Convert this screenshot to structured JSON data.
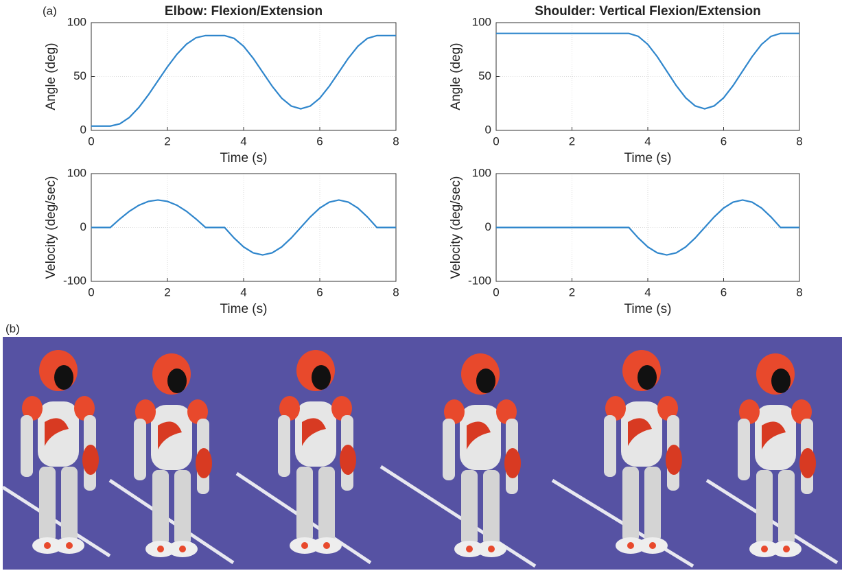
{
  "panel_labels": [
    "(a)",
    "(b)"
  ],
  "chart_data": [
    {
      "type": "line",
      "title": "Elbow: Flexion/Extension",
      "xlabel": "Time (s)",
      "ylabel": "Angle (deg)",
      "x": [
        0,
        0.25,
        0.5,
        0.75,
        1,
        1.25,
        1.5,
        1.75,
        2,
        2.25,
        2.5,
        2.75,
        3,
        3.25,
        3.5,
        3.75,
        4,
        4.25,
        4.5,
        4.75,
        5,
        5.25,
        5.5,
        5.75,
        6,
        6.25,
        6.5,
        6.75,
        7,
        7.25,
        7.5,
        7.75,
        8
      ],
      "series": [
        {
          "color": "#2f86cc",
          "values": [
            4,
            4,
            4,
            6.1,
            12,
            21.3,
            33,
            46,
            59,
            70.7,
            80,
            86,
            88,
            88,
            88,
            85.4,
            78.1,
            67,
            54,
            41,
            29.9,
            22.6,
            20,
            22.6,
            29.9,
            41,
            54,
            67,
            78.1,
            85.4,
            88,
            88,
            88
          ]
        }
      ],
      "xlim": [
        0,
        8
      ],
      "ylim": [
        0,
        100
      ],
      "xticks": [
        0,
        2,
        4,
        6,
        8
      ],
      "yticks": [
        0,
        50,
        100
      ],
      "grid": true
    },
    {
      "type": "line",
      "xlabel": "Time (s)",
      "ylabel": "Velocity (deg/sec)",
      "x": [
        0,
        0.25,
        0.5,
        0.75,
        1,
        1.25,
        1.5,
        1.75,
        2,
        2.25,
        2.5,
        2.75,
        3,
        3.25,
        3.5,
        3.75,
        4,
        4.25,
        4.5,
        4.75,
        5,
        5.25,
        5.5,
        5.75,
        6,
        6.25,
        6.5,
        6.75,
        7,
        7.25,
        7.5,
        7.75,
        8
      ],
      "series": [
        {
          "color": "#2f86cc",
          "values": [
            0,
            0,
            0,
            15.8,
            30,
            41.3,
            48.5,
            51,
            48.5,
            41.3,
            30,
            15.8,
            0,
            0,
            0,
            -19.5,
            -36.1,
            -47.1,
            -51,
            -47.1,
            -36.1,
            -19.5,
            0,
            19.5,
            36.1,
            47.1,
            51,
            47.1,
            36.1,
            19.5,
            0,
            0,
            0
          ]
        }
      ],
      "xlim": [
        0,
        8
      ],
      "ylim": [
        -100,
        100
      ],
      "xticks": [
        0,
        2,
        4,
        6,
        8
      ],
      "yticks": [
        -100,
        0,
        100
      ],
      "grid": true
    },
    {
      "type": "line",
      "title": "Shoulder: Vertical Flexion/Extension",
      "xlabel": "Time (s)",
      "ylabel": "Angle (deg)",
      "x": [
        0,
        0.25,
        0.5,
        0.75,
        1,
        1.25,
        1.5,
        1.75,
        2,
        2.25,
        2.5,
        2.75,
        3,
        3.25,
        3.5,
        3.75,
        4,
        4.25,
        4.5,
        4.75,
        5,
        5.25,
        5.5,
        5.75,
        6,
        6.25,
        6.5,
        6.75,
        7,
        7.25,
        7.5,
        7.75,
        8
      ],
      "series": [
        {
          "color": "#2f86cc",
          "values": [
            90,
            90,
            90,
            90,
            90,
            90,
            90,
            90,
            90,
            90,
            90,
            90,
            90,
            90,
            90,
            87.3,
            79.8,
            68.4,
            55,
            41.6,
            30.2,
            22.7,
            20,
            22.7,
            30.2,
            41.6,
            55,
            68.4,
            79.8,
            87.3,
            90,
            90,
            90
          ]
        }
      ],
      "xlim": [
        0,
        8
      ],
      "ylim": [
        0,
        100
      ],
      "xticks": [
        0,
        2,
        4,
        6,
        8
      ],
      "yticks": [
        0,
        50,
        100
      ],
      "grid": true
    },
    {
      "type": "line",
      "xlabel": "Time (s)",
      "ylabel": "Velocity (deg/sec)",
      "x": [
        0,
        0.25,
        0.5,
        0.75,
        1,
        1.25,
        1.5,
        1.75,
        2,
        2.25,
        2.5,
        2.75,
        3,
        3.25,
        3.5,
        3.75,
        4,
        4.25,
        4.5,
        4.75,
        5,
        5.25,
        5.5,
        5.75,
        6,
        6.25,
        6.5,
        6.75,
        7,
        7.25,
        7.5,
        7.75,
        8
      ],
      "series": [
        {
          "color": "#2f86cc",
          "values": [
            0,
            0,
            0,
            0,
            0,
            0,
            0,
            0,
            0,
            0,
            0,
            0,
            0,
            0,
            0,
            -19.5,
            -36.1,
            -47.1,
            -51,
            -47.1,
            -36.1,
            -19.5,
            0,
            19.5,
            36.1,
            47.1,
            51,
            47.1,
            36.1,
            19.5,
            0,
            0,
            0
          ]
        }
      ],
      "xlim": [
        0,
        8
      ],
      "ylim": [
        -100,
        100
      ],
      "xticks": [
        0,
        2,
        4,
        6,
        8
      ],
      "yticks": [
        -100,
        0,
        100
      ],
      "grid": true
    }
  ]
}
